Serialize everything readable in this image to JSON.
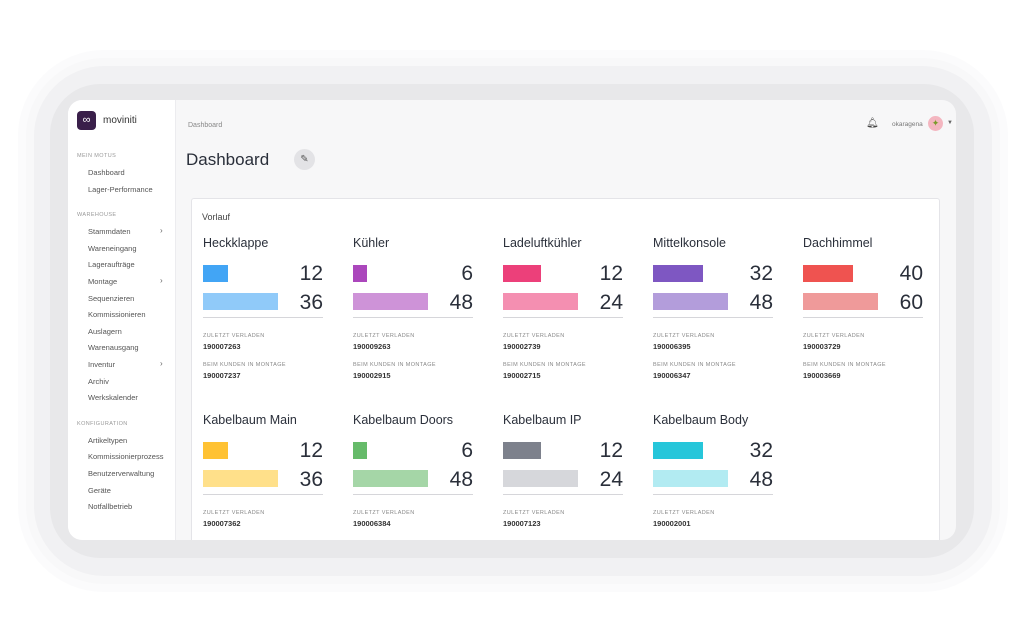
{
  "app": {
    "brand": "moviniti",
    "user": "okaragena"
  },
  "sidebar": {
    "sections": [
      {
        "label": "MEIN MOTUS",
        "items": [
          {
            "label": "Dashboard"
          },
          {
            "label": "Lager-Performance"
          }
        ]
      },
      {
        "label": "WAREHOUSE",
        "items": [
          {
            "label": "Stammdaten",
            "sub": true
          },
          {
            "label": "Wareneingang"
          },
          {
            "label": "Lageraufträge"
          },
          {
            "label": "Montage",
            "sub": true
          },
          {
            "label": "Sequenzieren"
          },
          {
            "label": "Kommissionieren"
          },
          {
            "label": "Auslagern"
          },
          {
            "label": "Warenausgang"
          },
          {
            "label": "Inventur",
            "sub": true
          },
          {
            "label": "Archiv"
          },
          {
            "label": "Werkskalender"
          }
        ]
      },
      {
        "label": "KONFIGURATION",
        "items": [
          {
            "label": "Artikeltypen"
          },
          {
            "label": "Kommissionierprozess"
          },
          {
            "label": "Benutzerverwaltung"
          },
          {
            "label": "Geräte"
          },
          {
            "label": "Notfallbetrieb"
          }
        ]
      }
    ]
  },
  "header": {
    "breadcrumb": "Dashboard",
    "title": "Dashboard"
  },
  "panel": {
    "label": "Vorlauf",
    "labels": {
      "last": "ZULETZT VERLADEN",
      "mount": "BEIM KUNDEN IN MONTAGE"
    },
    "cards": [
      {
        "title": "Heckklappe",
        "a": 12,
        "b": 36,
        "ca": "#42a5f5",
        "cb": "#90caf9",
        "last": "190007263",
        "mount": "190007237"
      },
      {
        "title": "Kühler",
        "a": 6,
        "b": 48,
        "ca": "#ab47bc",
        "cb": "#ce93d8",
        "last": "190009263",
        "mount": "190002915"
      },
      {
        "title": "Ladeluftkühler",
        "a": 12,
        "b": 24,
        "ca": "#ec407a",
        "cb": "#f48fb1",
        "last": "190002739",
        "mount": "190002715"
      },
      {
        "title": "Mittelkonsole",
        "a": 32,
        "b": 48,
        "ca": "#7e57c2",
        "cb": "#b39ddb",
        "last": "190006395",
        "mount": "190006347"
      },
      {
        "title": "Dachhimmel",
        "a": 40,
        "b": 60,
        "ca": "#ef5350",
        "cb": "#ef9a9a",
        "last": "190003729",
        "mount": "190003669"
      },
      {
        "title": "Kabelbaum Main",
        "a": 12,
        "b": 36,
        "ca": "#ffc233",
        "cb": "#ffe08a",
        "last": "190007362"
      },
      {
        "title": "Kabelbaum Doors",
        "a": 6,
        "b": 48,
        "ca": "#66bb6a",
        "cb": "#a5d6a7",
        "last": "190006384"
      },
      {
        "title": "Kabelbaum IP",
        "a": 12,
        "b": 24,
        "ca": "#7d818c",
        "cb": "#d6d7db",
        "last": "190007123"
      },
      {
        "title": "Kabelbaum Body",
        "a": 32,
        "b": 48,
        "ca": "#26c6da",
        "cb": "#b2ebf2",
        "last": "190002001"
      }
    ]
  }
}
